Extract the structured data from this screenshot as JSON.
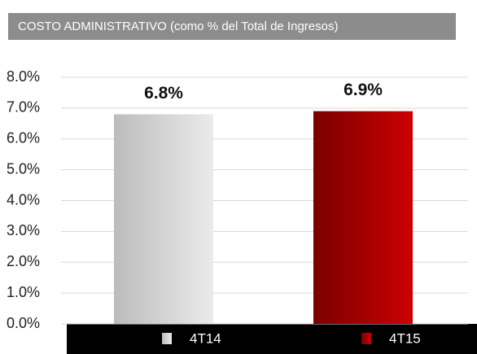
{
  "chart_data": {
    "type": "bar",
    "title": "COSTO ADMINISTRATIVO (como % del Total de Ingresos)",
    "categories": [
      "4T14",
      "4T15"
    ],
    "values": [
      6.8,
      6.9
    ],
    "value_labels": [
      "6.8%",
      "6.9%"
    ],
    "colors": [
      "#ebebeb",
      "#cc0000"
    ],
    "ylim": [
      0,
      8
    ],
    "yticks": [
      {
        "value": 0,
        "label": "0.0%"
      },
      {
        "value": 1,
        "label": "1.0%"
      },
      {
        "value": 2,
        "label": "2.0%"
      },
      {
        "value": 3,
        "label": "3.0%"
      },
      {
        "value": 4,
        "label": "4.0%"
      },
      {
        "value": 5,
        "label": "5.0%"
      },
      {
        "value": 6,
        "label": "6.0%"
      },
      {
        "value": 7,
        "label": "7.0%"
      },
      {
        "value": 8,
        "label": "8.0%"
      }
    ],
    "grid": true
  }
}
